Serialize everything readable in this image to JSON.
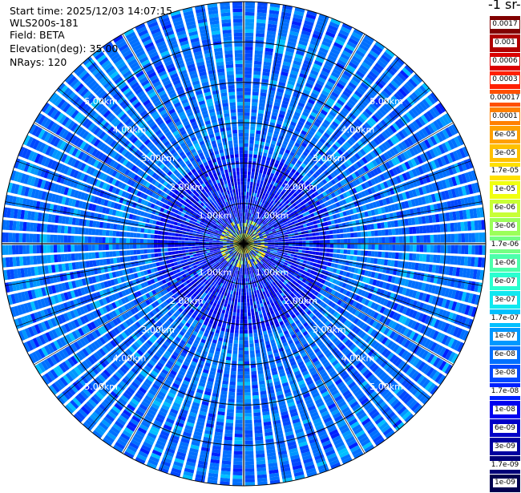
{
  "header": {
    "start_time": "Start time: 2025/12/03 14:07:15",
    "instrument": "WLS200s-181",
    "field": "Field: BETA",
    "elevation": "Elevation(deg): 35.00",
    "nrays": "NRays: 120"
  },
  "colorbar": {
    "unit_label": "-1 sr-",
    "labels": [
      "0.0017",
      "0.001",
      "0.0006",
      "0.0003",
      "0.00017",
      "0.0001",
      "6e-05",
      "3e-05",
      "1.7e-05",
      "1e-05",
      "6e-06",
      "3e-06",
      "1.7e-06",
      "1e-06",
      "6e-07",
      "3e-07",
      "1.7e-07",
      "1e-07",
      "6e-08",
      "3e-08",
      "1.7e-08",
      "1e-08",
      "6e-09",
      "3e-09",
      "1.7e-09",
      "1e-09"
    ],
    "colors": [
      "#800000",
      "#b00000",
      "#dc0000",
      "#ff2000",
      "#ff5000",
      "#ff8000",
      "#ffa000",
      "#ffc000",
      "#ffe000",
      "#f0ff10",
      "#c8ff37",
      "#9cff5a",
      "#74ff83",
      "#4cffab",
      "#2affd0",
      "#10e8f0",
      "#00c0ff",
      "#0098ff",
      "#0070ff",
      "#0048ff",
      "#0020ff",
      "#0000f0",
      "#0000c8",
      "#0000a0",
      "#000078",
      "#000050"
    ]
  },
  "chart_data": {
    "type": "heatmap",
    "projection": "polar-ppi",
    "field": "BETA",
    "elevation_deg": 35.0,
    "n_rays": 120,
    "range_rings_km": [
      1,
      2,
      3,
      4,
      5
    ],
    "ring_labels": [
      "1.00km",
      "2.00km",
      "3.00km",
      "4.00km",
      "5.00km"
    ],
    "max_range_km": 6.0,
    "color_scale": "log",
    "value_range": [
      1e-09,
      0.0017
    ],
    "dominant_values": [
      1e-08,
      3e-08
    ],
    "near_range_peak": 1e-05
  }
}
